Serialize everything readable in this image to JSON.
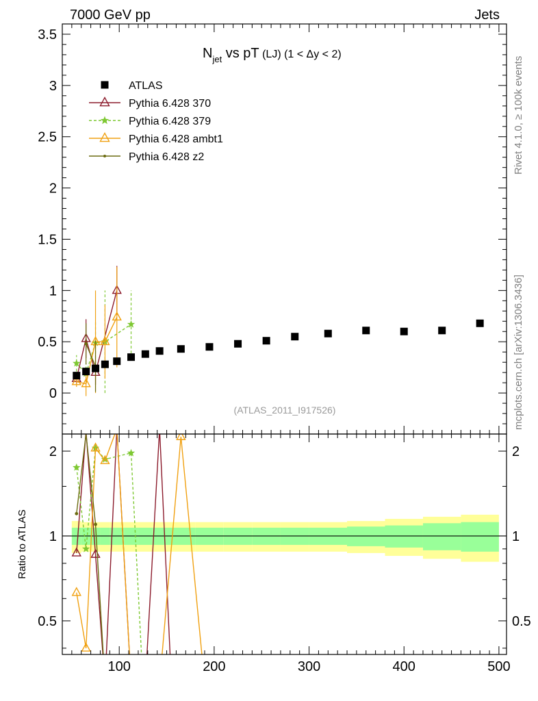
{
  "header": {
    "left": "7000 GeV pp",
    "right": "Jets",
    "side_top": "Rivet 4.1.0, ≥ 100k events",
    "side_bottom": "mcplots.cern.ch [arXiv:1306.3436]"
  },
  "chart_data": {
    "type": "scatter",
    "title_main": "N",
    "title_sub": "jet",
    "title_rest": " vs pT",
    "title_small": " (LJ) (1 < Δy < 2)",
    "watermark": "(ATLAS_2011_I917526)",
    "xlabel": "",
    "ylabel_ratio": "Ratio to ATLAS",
    "xlim": [
      40,
      508
    ],
    "ylim": [
      -0.4,
      3.6
    ],
    "ratio_ylim": [
      0.38,
      2.3
    ],
    "xticks": [
      100,
      200,
      300,
      400,
      500
    ],
    "yticks": [
      0,
      0.5,
      1,
      1.5,
      2,
      2.5,
      3,
      3.5
    ],
    "yticklabels": [
      "0",
      "0.5",
      "1",
      "1.5",
      "2",
      "2.5",
      "3",
      "3.5"
    ],
    "ratio_yticks": [
      0.5,
      1,
      2
    ],
    "ratio_yticklabels": [
      "0.5",
      "1",
      "2"
    ],
    "legend": [
      {
        "label": "ATLAS",
        "color": "#000000",
        "marker": "square",
        "dash": false
      },
      {
        "label": "Pythia 6.428 370",
        "color": "#8b1a2b",
        "marker": "triangle-open",
        "dash": false
      },
      {
        "label": "Pythia 6.428 379",
        "color": "#7ec832",
        "marker": "star",
        "dash": true
      },
      {
        "label": "Pythia 6.428 ambt1",
        "color": "#f0a010",
        "marker": "triangle-open",
        "dash": false
      },
      {
        "label": "Pythia 6.428 z2",
        "color": "#6b6b10",
        "marker": "dot",
        "dash": false
      }
    ],
    "atlas": {
      "bins": [
        [
          50,
          60
        ],
        [
          60,
          70
        ],
        [
          70,
          80
        ],
        [
          80,
          90
        ],
        [
          90,
          105
        ],
        [
          105,
          120
        ],
        [
          120,
          135
        ],
        [
          135,
          150
        ],
        [
          150,
          180
        ],
        [
          180,
          210
        ],
        [
          210,
          240
        ],
        [
          240,
          270
        ],
        [
          270,
          300
        ],
        [
          300,
          340
        ],
        [
          340,
          380
        ],
        [
          380,
          420
        ],
        [
          420,
          460
        ],
        [
          460,
          500
        ]
      ],
      "x": [
        55,
        65,
        75,
        85,
        97.5,
        112.5,
        127.5,
        142.5,
        165,
        195,
        225,
        255,
        285,
        320,
        360,
        400,
        440,
        480
      ],
      "y": [
        0.17,
        0.21,
        0.24,
        0.28,
        0.31,
        0.35,
        0.38,
        0.41,
        0.43,
        0.45,
        0.48,
        0.51,
        0.55,
        0.58,
        0.61,
        0.6,
        0.61,
        0.68
      ],
      "band_inner": [
        0.07,
        0.07,
        0.07,
        0.07,
        0.07,
        0.07,
        0.07,
        0.07,
        0.07,
        0.07,
        0.07,
        0.07,
        0.07,
        0.07,
        0.08,
        0.09,
        0.11,
        0.12
      ],
      "band_outer": [
        0.13,
        0.12,
        0.12,
        0.12,
        0.12,
        0.12,
        0.12,
        0.12,
        0.12,
        0.12,
        0.12,
        0.12,
        0.12,
        0.12,
        0.13,
        0.15,
        0.17,
        0.19
      ]
    },
    "mc": [
      {
        "name": "Pythia 6.428 370",
        "color": "#8b1a2b",
        "marker": "triangle-open",
        "dash": false,
        "x": [
          55,
          65,
          75,
          97.5
        ],
        "y": [
          0.14,
          0.53,
          0.2,
          1.0
        ],
        "err": [
          0.05,
          0.19,
          0.12,
          0.24
        ],
        "ratio_x": [
          55,
          65,
          75,
          85,
          97.5,
          112.5,
          127.5,
          142.5,
          155
        ],
        "ratio_y": [
          0.87,
          2.35,
          0.86,
          0.3,
          2.4,
          0.3,
          0.3,
          2.4,
          0.3
        ]
      },
      {
        "name": "Pythia 6.428 379",
        "color": "#7ec832",
        "marker": "star",
        "dash": true,
        "x": [
          55,
          65,
          75,
          85,
          112.5
        ],
        "y": [
          0.29,
          0.19,
          0.49,
          0.5,
          0.67
        ],
        "err": [
          0.08,
          0.1,
          0.2,
          0.5,
          0.33
        ],
        "ratio_x": [
          55,
          65,
          75,
          85,
          112.5,
          125
        ],
        "ratio_y": [
          1.75,
          0.9,
          2.05,
          1.87,
          1.97,
          0.3
        ]
      },
      {
        "name": "Pythia 6.428 ambt1",
        "color": "#f0a010",
        "marker": "triangle-open",
        "dash": false,
        "x": [
          55,
          65,
          75,
          85,
          97.5
        ],
        "y": [
          0.11,
          0.09,
          0.5,
          0.5,
          0.74
        ],
        "err": [
          0.05,
          0.12,
          0.5,
          0.36,
          0.49
        ],
        "ratio_x": [
          55,
          65,
          75,
          85,
          97.5,
          112.5,
          142.5,
          165,
          190
        ],
        "ratio_y": [
          0.63,
          0.4,
          2.05,
          1.85,
          2.4,
          0.3,
          0.3,
          2.25,
          0.3
        ]
      },
      {
        "name": "Pythia 6.428 z2",
        "color": "#6b6b10",
        "marker": "dot",
        "dash": false,
        "x": [
          65,
          75
        ],
        "y": [
          0.48,
          0.26
        ],
        "err": [
          0.2,
          0.25
        ],
        "ratio_x": [
          55,
          65,
          75,
          85
        ],
        "ratio_y": [
          1.2,
          2.3,
          1.1,
          0.3
        ]
      }
    ]
  }
}
